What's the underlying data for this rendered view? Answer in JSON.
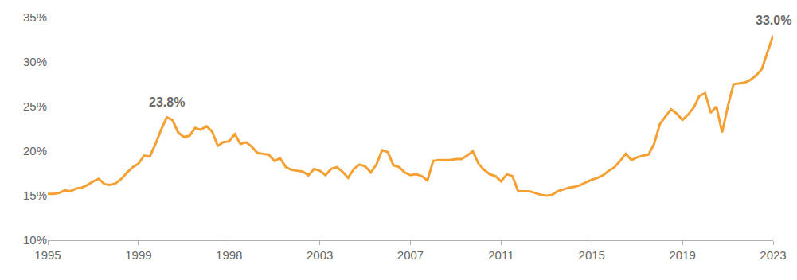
{
  "chart_data": {
    "type": "line",
    "categories": [
      "1995",
      null,
      null,
      null,
      null,
      null,
      null,
      null,
      null,
      null,
      null,
      null,
      null,
      null,
      null,
      null,
      "1999",
      null,
      null,
      null,
      null,
      null,
      null,
      null,
      null,
      null,
      null,
      null,
      null,
      null,
      null,
      null,
      "1998",
      null,
      null,
      null,
      null,
      null,
      null,
      null,
      null,
      null,
      null,
      null,
      null,
      null,
      null,
      null,
      "2003",
      null,
      null,
      null,
      null,
      null,
      null,
      null,
      null,
      null,
      null,
      null,
      null,
      null,
      null,
      null,
      "2007",
      null,
      null,
      null,
      null,
      null,
      null,
      null,
      null,
      null,
      null,
      null,
      null,
      null,
      null,
      null,
      "2011",
      null,
      null,
      null,
      null,
      null,
      null,
      null,
      null,
      null,
      null,
      null,
      null,
      null,
      null,
      null,
      "2015",
      null,
      null,
      null,
      null,
      null,
      null,
      null,
      null,
      null,
      null,
      null,
      null,
      null,
      null,
      null,
      "2019",
      null,
      null,
      null,
      null,
      null,
      null,
      null,
      null,
      null,
      null,
      null,
      null,
      null,
      null,
      null,
      "2023"
    ],
    "values": [
      15.2,
      15.2,
      15.3,
      15.6,
      15.5,
      15.8,
      15.9,
      16.2,
      16.6,
      16.9,
      16.3,
      16.2,
      16.4,
      16.9,
      17.6,
      18.2,
      18.6,
      19.5,
      19.4,
      20.8,
      22.4,
      23.8,
      23.5,
      22.1,
      21.6,
      21.7,
      22.6,
      22.4,
      22.8,
      22.2,
      20.6,
      21.0,
      21.1,
      21.9,
      20.8,
      21.0,
      20.5,
      19.8,
      19.7,
      19.6,
      18.9,
      19.2,
      18.2,
      17.9,
      17.8,
      17.7,
      17.3,
      18.0,
      17.8,
      17.3,
      18.0,
      18.2,
      17.7,
      17.0,
      18.0,
      18.5,
      18.3,
      17.6,
      18.5,
      20.1,
      19.9,
      18.4,
      18.2,
      17.6,
      17.3,
      17.4,
      17.2,
      16.7,
      18.9,
      19.0,
      19.0,
      19.0,
      19.1,
      19.1,
      19.5,
      20.0,
      18.6,
      17.9,
      17.4,
      17.2,
      16.6,
      17.4,
      17.2,
      15.5,
      15.5,
      15.5,
      15.3,
      15.1,
      15.0,
      15.1,
      15.5,
      15.7,
      15.9,
      16.0,
      16.2,
      16.5,
      16.8,
      17.0,
      17.3,
      17.8,
      18.2,
      18.9,
      19.7,
      19.0,
      19.3,
      19.5,
      19.6,
      20.8,
      23.0,
      23.9,
      24.7,
      24.2,
      23.5,
      24.1,
      24.9,
      26.2,
      26.5,
      24.3,
      25.0,
      22.1,
      25.0,
      27.5,
      27.6,
      27.7,
      28.0,
      28.5,
      29.2,
      31.0,
      33.0
    ],
    "color": "#f5a033",
    "ylim": [
      10,
      35
    ],
    "yticks": [
      {
        "value": 10,
        "label": "10%"
      },
      {
        "value": 15,
        "label": "15%"
      },
      {
        "value": 20,
        "label": "20%"
      },
      {
        "value": 25,
        "label": "25%"
      },
      {
        "value": 30,
        "label": "30%"
      },
      {
        "value": 35,
        "label": "35%"
      }
    ],
    "grid": false,
    "annotations": [
      {
        "text": "23.8%",
        "value": 23.8
      },
      {
        "text": "33.0%",
        "value": 33.0
      }
    ]
  }
}
